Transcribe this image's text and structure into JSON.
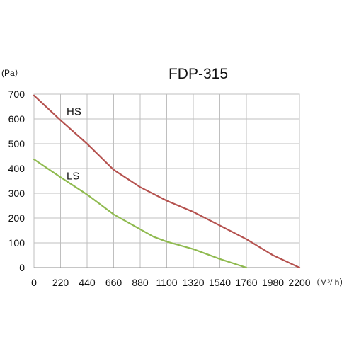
{
  "chart_data": {
    "type": "line",
    "title": "FDP-315",
    "ylabel": "(Pa）",
    "xlabel": "（M³/ h）",
    "x_ticks": [
      0,
      220,
      440,
      660,
      880,
      1100,
      1320,
      1540,
      1760,
      1980,
      2200
    ],
    "y_ticks": [
      0,
      100,
      200,
      300,
      400,
      500,
      600,
      700
    ],
    "xlim": [
      0,
      2200
    ],
    "ylim": [
      0,
      700
    ],
    "grid": true,
    "series": [
      {
        "name": "HS",
        "color": "#b5524f",
        "points": [
          [
            0,
            695
          ],
          [
            220,
            595
          ],
          [
            440,
            500
          ],
          [
            660,
            395
          ],
          [
            880,
            325
          ],
          [
            1100,
            270
          ],
          [
            1320,
            225
          ],
          [
            1540,
            170
          ],
          [
            1760,
            115
          ],
          [
            1980,
            50
          ],
          [
            2200,
            0
          ]
        ]
      },
      {
        "name": "LS",
        "color": "#8fba4f",
        "points": [
          [
            0,
            437
          ],
          [
            220,
            365
          ],
          [
            440,
            295
          ],
          [
            550,
            255
          ],
          [
            660,
            215
          ],
          [
            880,
            155
          ],
          [
            990,
            125
          ],
          [
            1100,
            105
          ],
          [
            1320,
            75
          ],
          [
            1540,
            35
          ],
          [
            1760,
            0
          ]
        ]
      }
    ],
    "labels": [
      {
        "text": "HS",
        "series": "HS",
        "x": 270,
        "y": 630
      },
      {
        "text": "LS",
        "series": "LS",
        "x": 270,
        "y": 370
      }
    ]
  }
}
